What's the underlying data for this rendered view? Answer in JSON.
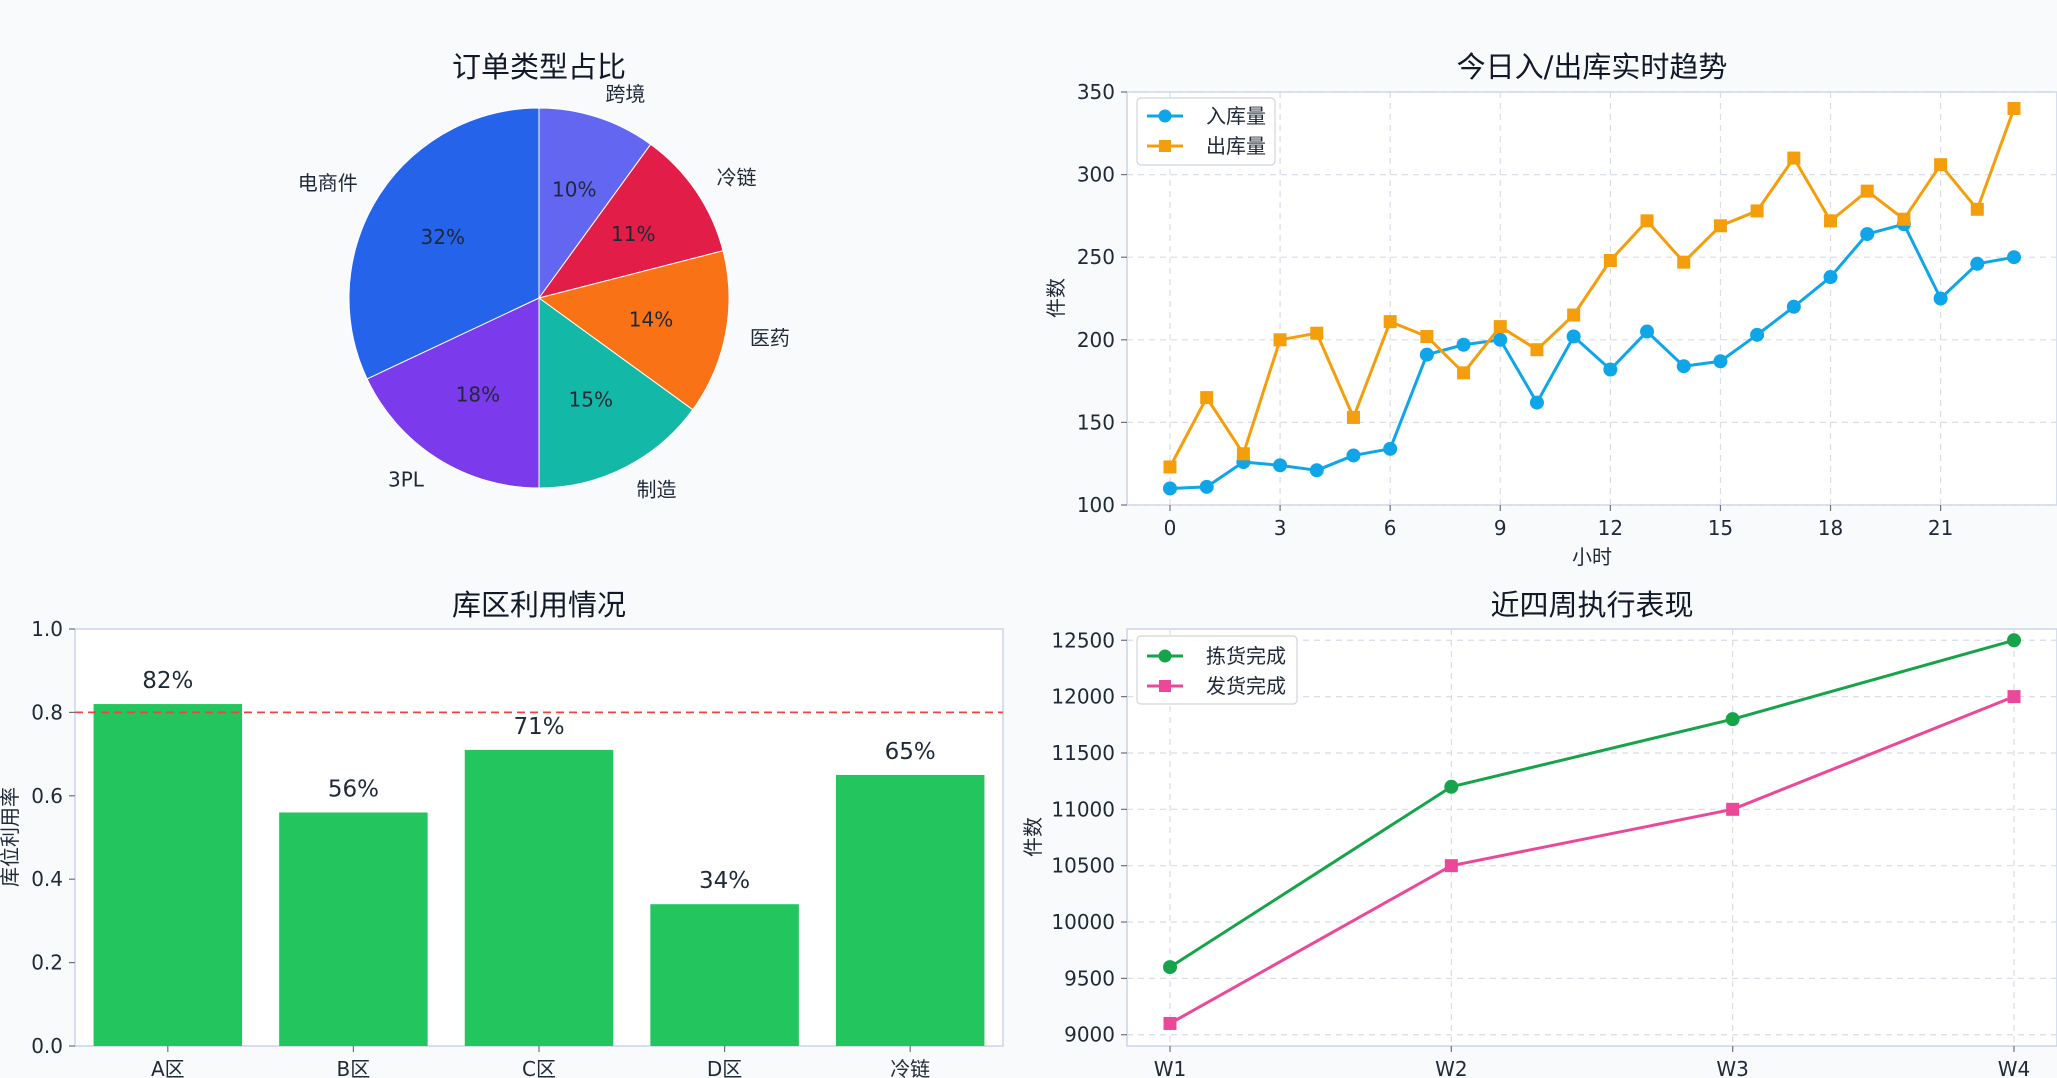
{
  "chart_data": [
    {
      "type": "pie",
      "title": "订单类型占比",
      "slices": [
        {
          "label": "跨境",
          "value": 10,
          "pct_label": "10%",
          "color": "#6366f1"
        },
        {
          "label": "冷链",
          "value": 11,
          "pct_label": "11%",
          "color": "#e11d48"
        },
        {
          "label": "医药",
          "value": 14,
          "pct_label": "14%",
          "color": "#f97316"
        },
        {
          "label": "制造",
          "value": 15,
          "pct_label": "15%",
          "color": "#14b8a6"
        },
        {
          "label": "3PL",
          "value": 18,
          "pct_label": "18%",
          "color": "#7c3aed"
        },
        {
          "label": "电商件",
          "value": 32,
          "pct_label": "32%",
          "color": "#2563eb"
        }
      ]
    },
    {
      "type": "line",
      "title": "今日入/出库实时趋势",
      "xlabel": "小时",
      "ylabel": "件数",
      "xlim": [
        -1.2,
        24.2
      ],
      "ylim": [
        100,
        350
      ],
      "xticks": [
        0,
        3,
        6,
        9,
        12,
        15,
        18,
        21
      ],
      "yticks": [
        100,
        150,
        200,
        250,
        300,
        350
      ],
      "grid": true,
      "legend_position": "top-left",
      "x": [
        0,
        1,
        2,
        3,
        4,
        5,
        6,
        7,
        8,
        9,
        10,
        11,
        12,
        13,
        14,
        15,
        16,
        17,
        18,
        19,
        20,
        21,
        22,
        23
      ],
      "series": [
        {
          "name": "入库量",
          "color": "#0ea5e9",
          "marker": "circle",
          "values": [
            110,
            111,
            126,
            124,
            121,
            130,
            134,
            191,
            197,
            200,
            162,
            202,
            182,
            205,
            184,
            187,
            203,
            220,
            238,
            264,
            270,
            225,
            246,
            250
          ]
        },
        {
          "name": "出库量",
          "color": "#f59e0b",
          "marker": "square",
          "values": [
            123,
            165,
            131,
            200,
            204,
            153,
            211,
            202,
            180,
            208,
            194,
            215,
            248,
            272,
            247,
            269,
            278,
            310,
            272,
            290,
            273,
            306,
            279,
            340
          ]
        }
      ]
    },
    {
      "type": "bar",
      "title": "库区利用情况",
      "ylabel": "库位利用率",
      "categories": [
        "A区",
        "B区",
        "C区",
        "D区",
        "冷链"
      ],
      "values": [
        0.82,
        0.56,
        0.71,
        0.34,
        0.65
      ],
      "value_labels": [
        "82%",
        "56%",
        "71%",
        "34%",
        "65%"
      ],
      "ylim": [
        0,
        1.0
      ],
      "yticks": [
        0.0,
        0.2,
        0.4,
        0.6,
        0.8,
        1.0
      ],
      "threshold": 0.8,
      "threshold_color": "#ef4444",
      "bar_color": "#22c55e",
      "grid": false
    },
    {
      "type": "line",
      "title": "近四周执行表现",
      "ylabel": "件数",
      "categories": [
        "W1",
        "W2",
        "W3",
        "W4"
      ],
      "ylim": [
        8900,
        12600
      ],
      "yticks": [
        9000,
        9500,
        10000,
        10500,
        11000,
        11500,
        12000,
        12500
      ],
      "grid": true,
      "legend_position": "top-left",
      "series": [
        {
          "name": "拣货完成",
          "color": "#16a34a",
          "marker": "circle",
          "values": [
            9600,
            11200,
            11800,
            12500
          ]
        },
        {
          "name": "发货完成",
          "color": "#ec4899",
          "marker": "square",
          "values": [
            9100,
            10500,
            11000,
            12000
          ]
        }
      ]
    }
  ]
}
